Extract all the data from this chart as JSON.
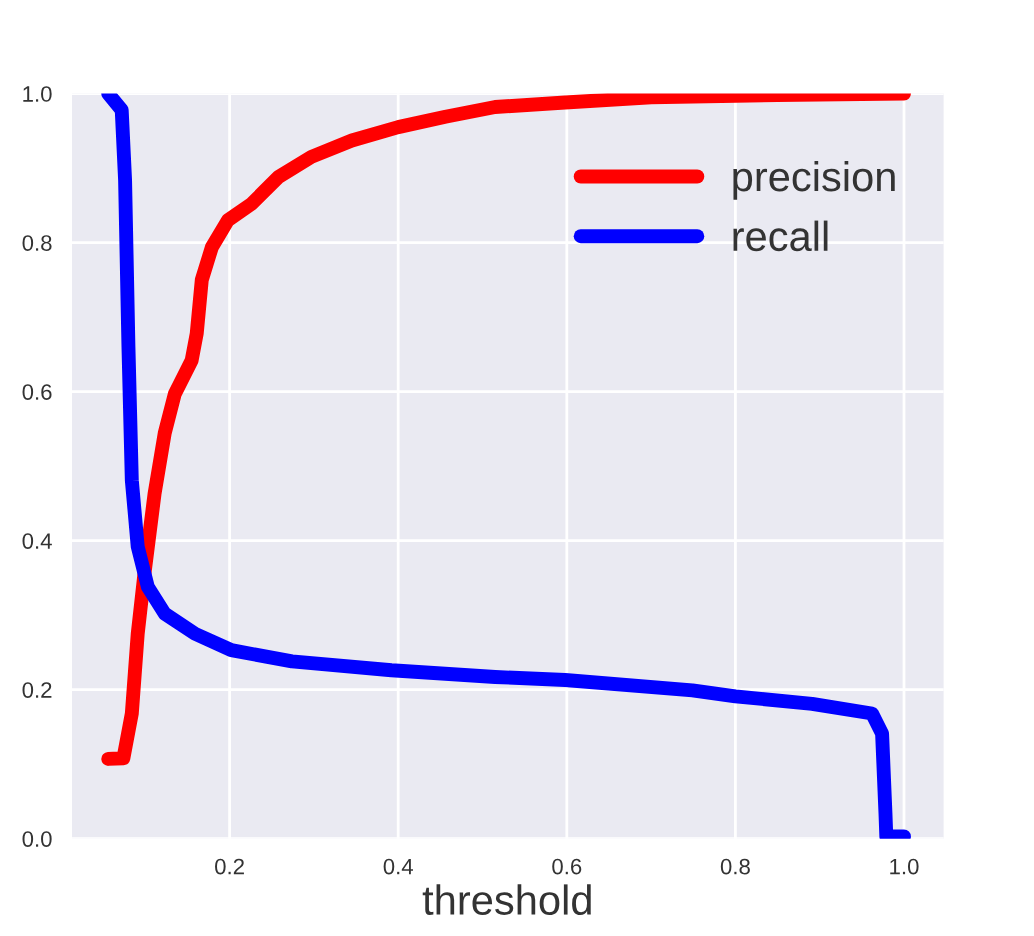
{
  "chart_data": {
    "type": "line",
    "xlabel": "threshold",
    "xlim": [
      0.013,
      1.047
    ],
    "ylim": [
      0,
      1
    ],
    "xticks": [
      0.2,
      0.4,
      0.6,
      0.8,
      {
        "value": 1,
        "label": "1.0"
      }
    ],
    "yticks": [
      {
        "value": 0,
        "label": "0.0"
      },
      0.2,
      0.4,
      0.6,
      0.8,
      {
        "value": 1,
        "label": "1.0"
      }
    ],
    "grid": true,
    "legend": "top right",
    "series": [
      {
        "name": "precision",
        "color": "#ff0000",
        "x": [
          0.056,
          0.074,
          0.084,
          0.091,
          0.099,
          0.111,
          0.123,
          0.135,
          0.155,
          0.161,
          0.167,
          0.179,
          0.198,
          0.226,
          0.258,
          0.297,
          0.345,
          0.4,
          0.456,
          0.515,
          0.598,
          0.7,
          0.85,
          1.0
        ],
        "values": [
          0.107,
          0.108,
          0.168,
          0.275,
          0.356,
          0.463,
          0.544,
          0.597,
          0.642,
          0.678,
          0.75,
          0.794,
          0.83,
          0.852,
          0.888,
          0.915,
          0.937,
          0.955,
          0.969,
          0.982,
          0.988,
          0.995,
          0.998,
          1.0
        ]
      },
      {
        "name": "recall",
        "color": "#0000ff",
        "x": [
          0.056,
          0.072,
          0.076,
          0.08,
          0.084,
          0.091,
          0.103,
          0.123,
          0.159,
          0.202,
          0.274,
          0.392,
          0.515,
          0.598,
          0.749,
          0.8,
          0.891,
          0.962,
          0.974,
          0.978,
          0.979,
          1.0
        ],
        "values": [
          1.0,
          0.978,
          0.884,
          0.66,
          0.481,
          0.392,
          0.338,
          0.302,
          0.275,
          0.253,
          0.238,
          0.226,
          0.217,
          0.213,
          0.199,
          0.191,
          0.181,
          0.168,
          0.141,
          0.034,
          0.003,
          0.003
        ]
      }
    ]
  }
}
